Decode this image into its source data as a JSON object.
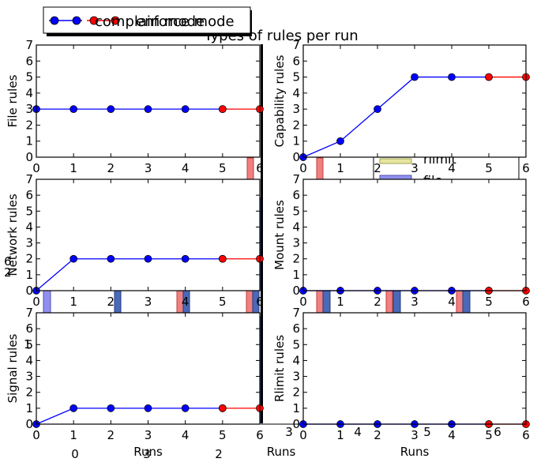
{
  "figure": {
    "title": "Types of rules per run",
    "legend": {
      "placement": "top-left",
      "entries": [
        {
          "label": "complain mode",
          "color": "#0000ff",
          "marker": "circle"
        },
        {
          "label": "enforce mode",
          "color": "#ff0000",
          "marker": "circle"
        }
      ]
    },
    "ghost_legend": [
      "rlimit",
      "file"
    ],
    "ghost_ticks": [
      "0",
      "1",
      "2",
      "3",
      "4",
      "5",
      "6",
      "3",
      "4",
      "5",
      "6"
    ],
    "shared_xlabel": "Runs",
    "colors": {
      "complain": "#0000ff",
      "enforce": "#ff0000",
      "ghost_red": "#f08080",
      "ghost_blue": "#4a6ab8",
      "ghost_lightblue": "#9090f0",
      "ghost_yellow": "#e6e6a0"
    }
  },
  "chart_data": [
    {
      "type": "line",
      "ylabel": "File rules",
      "xlabel": "",
      "xlim": [
        0,
        6
      ],
      "ylim": [
        0,
        7
      ],
      "x": [
        0,
        1,
        2,
        3,
        4,
        5,
        6
      ],
      "yticks": [
        "0",
        "1",
        "2",
        "3",
        "4",
        "5",
        "6",
        "7"
      ],
      "series": [
        {
          "name": "complain mode",
          "x": [
            0,
            1,
            2,
            3,
            4,
            5
          ],
          "values": [
            3,
            3,
            3,
            3,
            3,
            3
          ]
        },
        {
          "name": "enforce mode",
          "x": [
            5,
            6
          ],
          "values": [
            3,
            3
          ]
        }
      ]
    },
    {
      "type": "line",
      "ylabel": "Capability rules",
      "xlabel": "",
      "xlim": [
        0,
        6
      ],
      "ylim": [
        0,
        7
      ],
      "x": [
        0,
        1,
        2,
        3,
        4,
        5,
        6
      ],
      "yticks": [
        "0",
        "1",
        "2",
        "3",
        "4",
        "5",
        "6",
        "7"
      ],
      "series": [
        {
          "name": "complain mode",
          "x": [
            0,
            1,
            2,
            3,
            4,
            5
          ],
          "values": [
            0,
            1,
            3,
            5,
            5,
            5
          ]
        },
        {
          "name": "enforce mode",
          "x": [
            5,
            6
          ],
          "values": [
            5,
            5
          ]
        }
      ]
    },
    {
      "type": "line",
      "ylabel": "Network rules",
      "xlabel": "",
      "xlim": [
        0,
        6
      ],
      "ylim": [
        0,
        7
      ],
      "x": [
        0,
        1,
        2,
        3,
        4,
        5,
        6
      ],
      "yticks": [
        "0",
        "1",
        "2",
        "3",
        "4",
        "5",
        "6",
        "7"
      ],
      "series": [
        {
          "name": "complain mode",
          "x": [
            0,
            1,
            2,
            3,
            4,
            5
          ],
          "values": [
            0,
            2,
            2,
            2,
            2,
            2
          ]
        },
        {
          "name": "enforce mode",
          "x": [
            5,
            6
          ],
          "values": [
            2,
            2
          ]
        }
      ]
    },
    {
      "type": "line",
      "ylabel": "Mount rules",
      "xlabel": "",
      "xlim": [
        0,
        6
      ],
      "ylim": [
        0,
        7
      ],
      "x": [
        0,
        1,
        2,
        3,
        4,
        5,
        6
      ],
      "yticks": [
        "0",
        "1",
        "2",
        "3",
        "4",
        "5",
        "6",
        "7"
      ],
      "series": [
        {
          "name": "complain mode",
          "x": [
            0,
            1,
            2,
            3,
            4,
            5
          ],
          "values": [
            0,
            0,
            0,
            0,
            0,
            0
          ]
        },
        {
          "name": "enforce mode",
          "x": [
            5,
            6
          ],
          "values": [
            0,
            0
          ]
        }
      ]
    },
    {
      "type": "line",
      "ylabel": "Signal rules",
      "xlabel": "Runs",
      "xlim": [
        0,
        6
      ],
      "ylim": [
        0,
        7
      ],
      "x": [
        0,
        1,
        2,
        3,
        4,
        5,
        6
      ],
      "yticks": [
        "0",
        "1",
        "2",
        "3",
        "4",
        "5",
        "6",
        "7"
      ],
      "series": [
        {
          "name": "complain mode",
          "x": [
            0,
            1,
            2,
            3,
            4,
            5
          ],
          "values": [
            0,
            1,
            1,
            1,
            1,
            1
          ]
        },
        {
          "name": "enforce mode",
          "x": [
            5,
            6
          ],
          "values": [
            1,
            1
          ]
        }
      ]
    },
    {
      "type": "line",
      "ylabel": "Rlimit rules",
      "xlabel": "Runs",
      "xlim": [
        0,
        6
      ],
      "ylim": [
        0,
        7
      ],
      "x": [
        0,
        1,
        2,
        3,
        4,
        5,
        6
      ],
      "yticks": [
        "0",
        "1",
        "2",
        "3",
        "4",
        "5",
        "6",
        "7"
      ],
      "series": [
        {
          "name": "complain mode",
          "x": [
            0,
            1,
            2,
            3,
            4,
            5
          ],
          "values": [
            0,
            0,
            0,
            0,
            0,
            0
          ]
        },
        {
          "name": "enforce mode",
          "x": [
            5,
            6
          ],
          "values": [
            0,
            0
          ]
        }
      ]
    }
  ]
}
